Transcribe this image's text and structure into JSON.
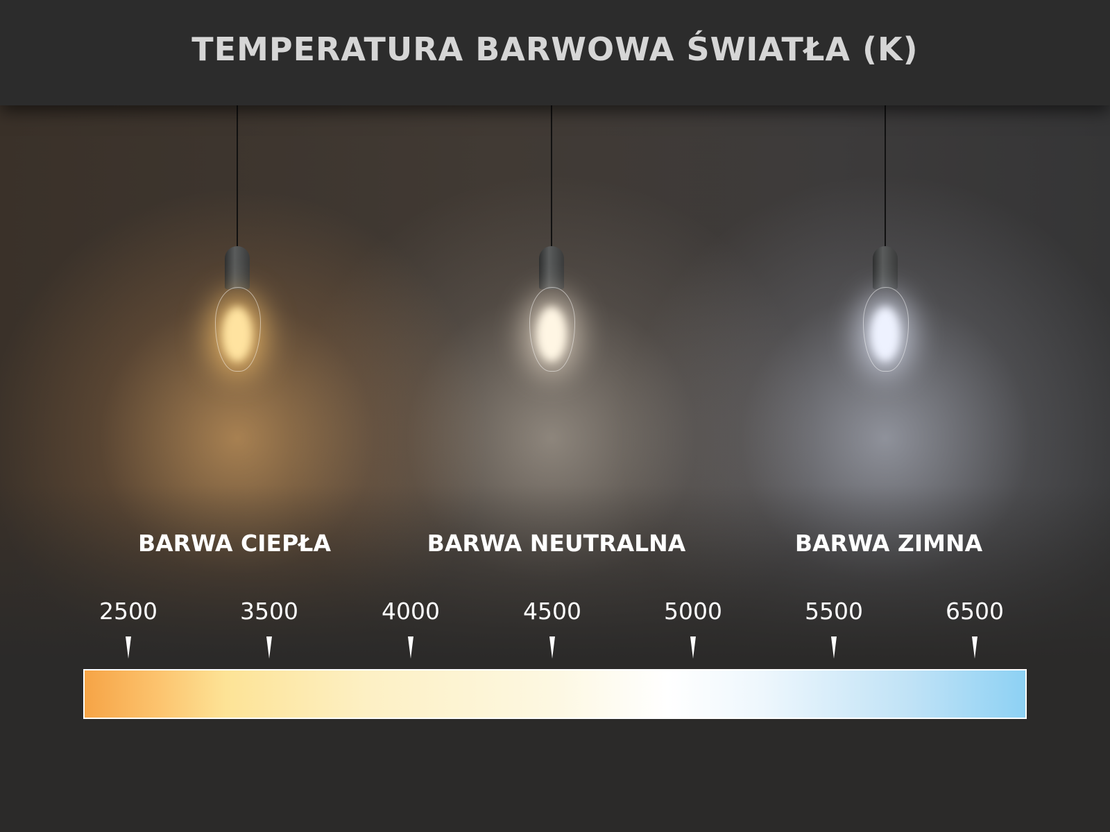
{
  "title": "TEMPERATURA BARWOWA ŚWIATŁA (K)",
  "categories": [
    {
      "label": "BARWA CIEPŁA",
      "color": "#fcc46f"
    },
    {
      "label": "BARWA NEUTRALNA",
      "color": "#fdf8e2"
    },
    {
      "label": "BARWA ZIMNA",
      "color": "#8dd1f4"
    }
  ],
  "scale": {
    "ticks": [
      "2500",
      "3500",
      "4000",
      "4500",
      "5000",
      "5500",
      "6500"
    ],
    "gradient_colors": [
      "#f6a446",
      "#fde396",
      "#ffffff",
      "#8dd1f4"
    ]
  },
  "bulbs": [
    {
      "icon": "warm-light-bulb-icon",
      "glow": "#ffd58a"
    },
    {
      "icon": "neutral-light-bulb-icon",
      "glow": "#fff3dc"
    },
    {
      "icon": "cold-light-bulb-icon",
      "glow": "#e8eeff"
    }
  ]
}
